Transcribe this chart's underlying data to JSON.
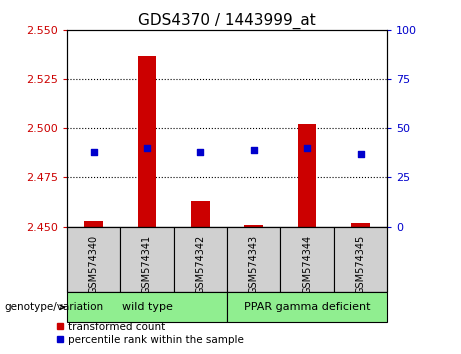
{
  "title": "GDS4370 / 1443999_at",
  "samples": [
    "GSM574340",
    "GSM574341",
    "GSM574342",
    "GSM574343",
    "GSM574344",
    "GSM574345"
  ],
  "transformed_count": [
    2.453,
    2.537,
    2.463,
    2.451,
    2.502,
    2.452
  ],
  "percentile_rank": [
    38,
    40,
    38,
    39,
    40,
    37
  ],
  "ylim_left": [
    2.45,
    2.55
  ],
  "ylim_right": [
    0,
    100
  ],
  "yticks_left": [
    2.45,
    2.475,
    2.5,
    2.525,
    2.55
  ],
  "yticks_right": [
    0,
    25,
    50,
    75,
    100
  ],
  "bar_color": "#CC0000",
  "marker_color": "#0000CC",
  "bar_bottom": 2.45,
  "sample_bg_color": "#d0d0d0",
  "group_bg_color": "#90EE90",
  "left_tick_color": "#CC0000",
  "right_tick_color": "#0000CC",
  "title_fontsize": 11,
  "tick_fontsize": 8,
  "label_fontsize": 8,
  "wild_type_label": "wild type",
  "ppar_label": "PPAR gamma deficient",
  "genotype_label": "genotype/variation",
  "legend_labels": [
    "transformed count",
    "percentile rank within the sample"
  ],
  "bar_width": 0.35
}
